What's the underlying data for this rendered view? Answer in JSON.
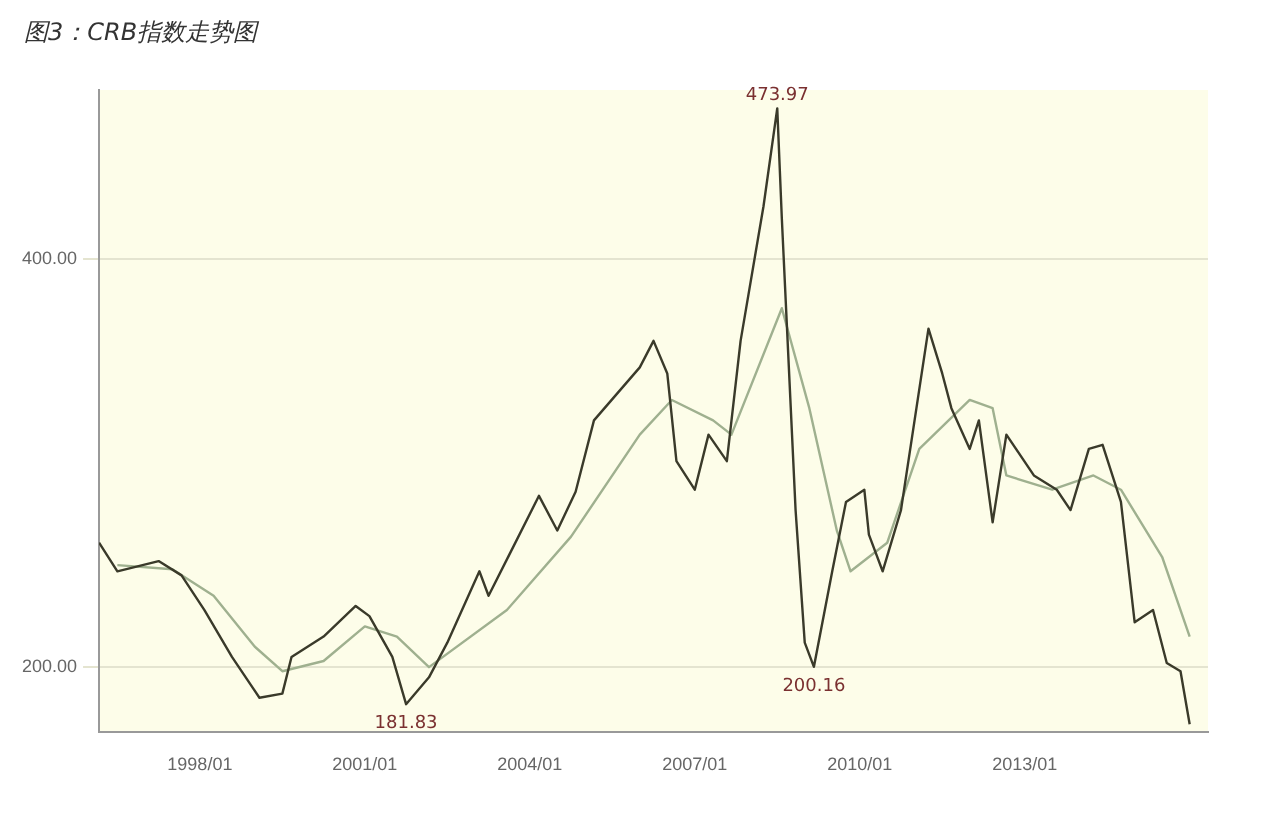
{
  "chart_data": {
    "type": "line",
    "title": "图3：CRB指数走势图",
    "series": [
      {
        "color": "#3a3a2a",
        "x": [
          "1996-03",
          "1996-07",
          "1997-04",
          "1997-09",
          "1998-02",
          "1998-08",
          "1999-02",
          "1999-07",
          "1999-09",
          "2000-04",
          "2000-11",
          "2001-02",
          "2001-07",
          "2001-10",
          "2002-03",
          "2002-07",
          "2003-02",
          "2003-04",
          "2004-03",
          "2004-07",
          "2004-11",
          "2005-03",
          "2005-08",
          "2006-01",
          "2006-04",
          "2006-07",
          "2006-09",
          "2007-01",
          "2007-04",
          "2007-08",
          "2007-11",
          "2008-04",
          "2008-07",
          "2008-08",
          "2008-11",
          "2009-01",
          "2009-03",
          "2009-07",
          "2009-10",
          "2010-02",
          "2010-03",
          "2010-06",
          "2010-10",
          "2011-04",
          "2011-07",
          "2011-09",
          "2012-01",
          "2012-03",
          "2012-06",
          "2012-09",
          "2013-03",
          "2013-08",
          "2013-11",
          "2014-03",
          "2014-06",
          "2014-10",
          "2015-01",
          "2015-05",
          "2015-08",
          "2015-11",
          "2016-01"
        ],
        "values": [
          261,
          247,
          252,
          245,
          228,
          205,
          185,
          187,
          205,
          215,
          230,
          225,
          205,
          181.83,
          195,
          212,
          247,
          235,
          284,
          267,
          286,
          321,
          334,
          347,
          360,
          344,
          301,
          287,
          314,
          301,
          360,
          426,
          473.97,
          420,
          277,
          212,
          200.16,
          247,
          281,
          287,
          265,
          247,
          277,
          366,
          344,
          327,
          307,
          321,
          271,
          314,
          294,
          287,
          277,
          307,
          309,
          281,
          222,
          228,
          202,
          198,
          172
        ]
      },
      {
        "color": "#9fb08f",
        "x": [
          "1996-07",
          "1997-07",
          "1998-04",
          "1999-01",
          "1999-07",
          "2000-04",
          "2001-01",
          "2001-08",
          "2002-03",
          "2003-08",
          "2004-10",
          "2006-01",
          "2006-08",
          "2007-05",
          "2007-09",
          "2008-08",
          "2009-02",
          "2009-08",
          "2009-11",
          "2010-07",
          "2011-02",
          "2012-01",
          "2012-06",
          "2012-09",
          "2013-07",
          "2014-04",
          "2014-10",
          "2015-07",
          "2016-01"
        ],
        "values": [
          250,
          248,
          235,
          210,
          198,
          203,
          220,
          215,
          200,
          228,
          264,
          314,
          331,
          321,
          314,
          376,
          327,
          267,
          247,
          261,
          307,
          331,
          327,
          294,
          287,
          294,
          287,
          254,
          215
        ]
      }
    ],
    "xlim": [
      "1996-03",
      "2016-05"
    ],
    "xticks": [
      {
        "value": "1998-01",
        "label": "1998/01"
      },
      {
        "value": "2001-01",
        "label": "2001/01"
      },
      {
        "value": "2004-01",
        "label": "2004/01"
      },
      {
        "value": "2007-01",
        "label": "2007/01"
      },
      {
        "value": "2010-01",
        "label": "2010/01"
      },
      {
        "value": "2013-01",
        "label": "2013/01"
      }
    ],
    "ylim": [
      168,
      483
    ],
    "yticks": [
      {
        "value": 200,
        "label": "200.00"
      },
      {
        "value": 400,
        "label": "400.00"
      }
    ],
    "grid": "y",
    "line_style": "solid",
    "marker": "none",
    "annotations": [
      {
        "text": "473.97",
        "x": "2008-07",
        "y": 473.97
      },
      {
        "text": "200.16",
        "x": "2009-03",
        "y": 200.16
      },
      {
        "text": "181.83",
        "x": "2001-10",
        "y": 181.83
      }
    ]
  }
}
